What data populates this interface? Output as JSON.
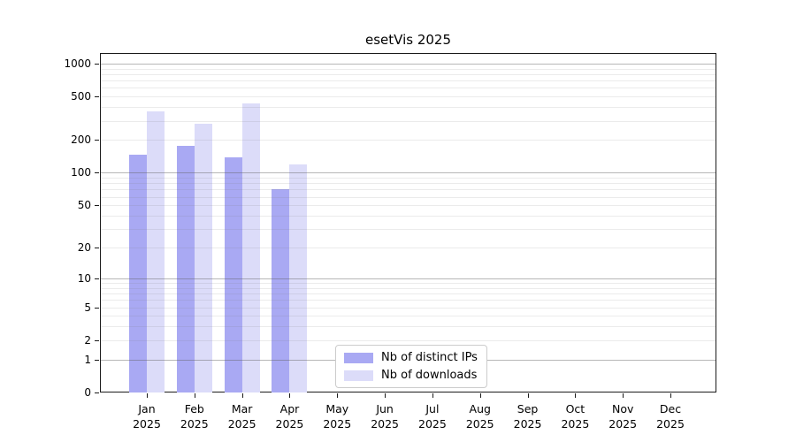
{
  "title": "esetVis 2025",
  "chart_data": {
    "type": "bar",
    "title": "esetVis 2025",
    "categories": [
      "Jan",
      "Feb",
      "Mar",
      "Apr",
      "May",
      "Jun",
      "Jul",
      "Aug",
      "Sep",
      "Oct",
      "Nov",
      "Dec"
    ],
    "category_year": "2025",
    "series": [
      {
        "name": "Nb of distinct IPs",
        "color": "#a9a9f3",
        "values": [
          146,
          178,
          139,
          71,
          0,
          0,
          0,
          0,
          0,
          0,
          0,
          0
        ]
      },
      {
        "name": "Nb of downloads",
        "color": "#dcdcf9",
        "values": [
          365,
          282,
          433,
          120,
          0,
          0,
          0,
          0,
          0,
          0,
          0,
          0
        ]
      }
    ],
    "yscale": "log10(x+1)",
    "y_ticks": [
      0,
      1,
      2,
      5,
      10,
      20,
      50,
      100,
      200,
      500,
      1000
    ],
    "y_major_grid": [
      1,
      10,
      100,
      1000
    ],
    "ylim": [
      0,
      1265
    ],
    "grid": "both",
    "legend_position": "bottom-center",
    "background_color": "#ffffff",
    "axis_color": "#1a1a1a"
  }
}
